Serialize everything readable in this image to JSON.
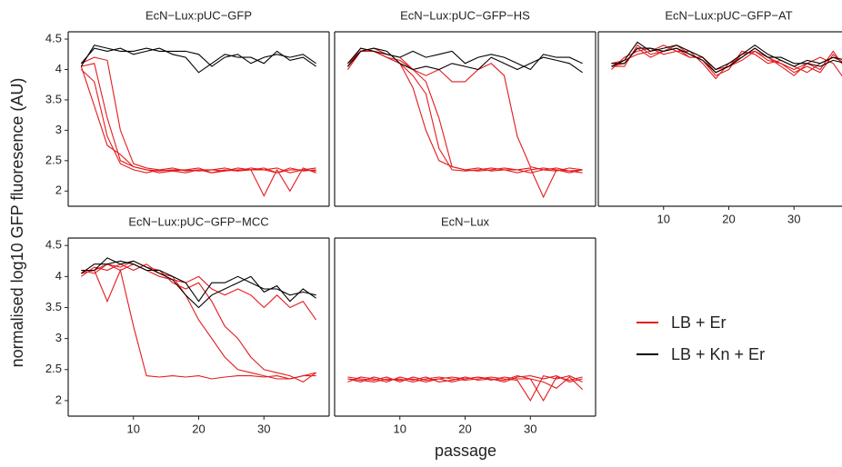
{
  "chart_data": [
    {
      "type": "line",
      "title": "EcN−Lux:pUC−GFP",
      "y_label": "normalised log10 GFP fluoresence (AU)",
      "x": [
        2,
        4,
        6,
        8,
        10,
        12,
        14,
        16,
        18,
        20,
        22,
        24,
        26,
        28,
        30,
        32,
        34,
        36,
        38
      ],
      "xlim": [
        0,
        40
      ],
      "ylim": [
        1.75,
        4.62
      ],
      "yticks": [
        2.0,
        2.5,
        3.0,
        3.5,
        4.0,
        4.5
      ],
      "series": [
        {
          "name": "LB + Er",
          "color": "#e41a1c",
          "values": [
            4.05,
            3.4,
            2.75,
            2.6,
            2.4,
            2.35,
            2.33,
            2.35,
            2.35,
            2.33,
            2.35,
            2.33,
            2.35,
            2.35,
            2.38,
            2.3,
            2.35,
            2.35,
            2.38
          ]
        },
        {
          "name": "LB + Er",
          "color": "#e41a1c",
          "values": [
            4.05,
            4.1,
            3.2,
            2.5,
            2.4,
            2.35,
            2.3,
            2.33,
            2.35,
            2.38,
            2.3,
            2.35,
            2.33,
            2.38,
            2.35,
            2.38,
            2.3,
            2.35,
            2.33
          ]
        },
        {
          "name": "LB + Er",
          "color": "#e41a1c",
          "values": [
            4.1,
            4.2,
            4.15,
            3.0,
            2.45,
            2.38,
            2.35,
            2.33,
            2.3,
            2.35,
            2.35,
            2.38,
            2.33,
            2.35,
            1.92,
            2.35,
            2.0,
            2.38,
            2.3
          ]
        },
        {
          "name": "LB + Er",
          "color": "#e41a1c",
          "values": [
            4.0,
            3.8,
            2.9,
            2.45,
            2.35,
            2.3,
            2.35,
            2.38,
            2.33,
            2.35,
            2.3,
            2.33,
            2.38,
            2.35,
            2.35,
            2.3,
            2.38,
            2.33,
            2.35
          ]
        },
        {
          "name": "LB + Kn + Er",
          "color": "#000000",
          "values": [
            4.05,
            4.4,
            4.35,
            4.3,
            4.3,
            4.35,
            4.3,
            4.3,
            4.3,
            4.25,
            4.05,
            4.2,
            4.25,
            4.1,
            4.2,
            4.25,
            4.2,
            4.25,
            4.1
          ]
        },
        {
          "name": "LB + Kn + Er",
          "color": "#000000",
          "values": [
            4.1,
            4.35,
            4.3,
            4.35,
            4.25,
            4.3,
            4.35,
            4.25,
            4.2,
            3.95,
            4.1,
            4.25,
            4.2,
            4.2,
            4.1,
            4.3,
            4.15,
            4.2,
            4.05
          ]
        }
      ]
    },
    {
      "type": "line",
      "title": "EcN−Lux:pUC−GFP−HS",
      "x": [
        2,
        4,
        6,
        8,
        10,
        12,
        14,
        16,
        18,
        20,
        22,
        24,
        26,
        28,
        30,
        32,
        34,
        36,
        38
      ],
      "xlim": [
        0,
        40
      ],
      "ylim": [
        1.75,
        4.62
      ],
      "series": [
        {
          "name": "LB + Er",
          "color": "#e41a1c",
          "values": [
            4.05,
            4.35,
            4.3,
            4.2,
            4.1,
            3.7,
            3.0,
            2.5,
            2.4,
            2.35,
            2.33,
            2.35,
            2.38,
            2.35,
            2.3,
            2.35,
            2.33,
            2.38,
            2.35
          ]
        },
        {
          "name": "LB + Er",
          "color": "#e41a1c",
          "values": [
            4.1,
            4.3,
            4.35,
            4.25,
            4.2,
            4.0,
            3.8,
            3.2,
            2.4,
            2.35,
            2.38,
            2.33,
            2.35,
            2.35,
            2.38,
            1.9,
            2.35,
            2.3,
            2.35
          ]
        },
        {
          "name": "LB + Er",
          "color": "#e41a1c",
          "values": [
            4.0,
            4.3,
            4.3,
            4.2,
            4.1,
            3.9,
            3.6,
            2.7,
            2.35,
            2.33,
            2.35,
            2.38,
            2.35,
            2.3,
            2.35,
            2.38,
            2.35,
            2.33,
            2.3
          ]
        },
        {
          "name": "LB + Er",
          "color": "#e41a1c",
          "values": [
            4.05,
            4.3,
            4.3,
            4.2,
            4.15,
            4.0,
            3.9,
            4.0,
            3.8,
            3.8,
            4.0,
            4.1,
            3.9,
            2.9,
            2.4,
            2.35,
            2.38,
            2.33,
            2.35
          ]
        },
        {
          "name": "LB + Kn + Er",
          "color": "#000000",
          "values": [
            4.1,
            4.35,
            4.3,
            4.25,
            4.2,
            4.3,
            4.2,
            4.25,
            4.3,
            4.1,
            4.2,
            4.25,
            4.2,
            4.1,
            4.0,
            4.25,
            4.2,
            4.2,
            4.1
          ]
        },
        {
          "name": "LB + Kn + Er",
          "color": "#000000",
          "values": [
            4.05,
            4.3,
            4.35,
            4.3,
            4.1,
            4.0,
            4.05,
            4.0,
            4.1,
            4.05,
            4.0,
            4.2,
            4.1,
            4.0,
            4.1,
            4.2,
            4.15,
            4.1,
            3.95
          ]
        }
      ]
    },
    {
      "type": "line",
      "title": "EcN−Lux:pUC−GFP−AT",
      "x": [
        2,
        4,
        6,
        8,
        10,
        12,
        14,
        16,
        18,
        20,
        22,
        24,
        26,
        28,
        30,
        32,
        34,
        36,
        38
      ],
      "xlim": [
        0,
        40
      ],
      "ylim": [
        1.75,
        4.62
      ],
      "xticks": [
        10,
        20,
        30
      ],
      "series": [
        {
          "name": "LB + Er",
          "color": "#e41a1c",
          "values": [
            4.05,
            4.1,
            4.35,
            4.2,
            4.3,
            4.35,
            4.2,
            4.2,
            3.95,
            4.05,
            4.25,
            4.3,
            4.15,
            4.1,
            4.0,
            4.1,
            4.0,
            4.3,
            4.0
          ]
        },
        {
          "name": "LB + Er",
          "color": "#e41a1c",
          "values": [
            4.0,
            4.2,
            4.3,
            4.35,
            4.25,
            4.3,
            4.3,
            4.1,
            3.85,
            4.1,
            4.2,
            4.35,
            4.2,
            4.05,
            3.9,
            4.1,
            4.2,
            4.1,
            3.8
          ]
        },
        {
          "name": "LB + Er",
          "color": "#e41a1c",
          "values": [
            4.05,
            4.05,
            4.4,
            4.25,
            4.3,
            4.4,
            4.25,
            4.15,
            3.9,
            4.0,
            4.3,
            4.25,
            4.1,
            4.15,
            4.05,
            3.95,
            4.1,
            4.2,
            4.1
          ]
        },
        {
          "name": "LB + Er",
          "color": "#e41a1c",
          "values": [
            4.1,
            4.15,
            4.25,
            4.3,
            4.4,
            4.3,
            4.2,
            4.2,
            4.0,
            4.05,
            4.15,
            4.3,
            4.2,
            4.1,
            3.95,
            4.05,
            3.95,
            4.25,
            4.05
          ]
        },
        {
          "name": "LB + Kn + Er",
          "color": "#000000",
          "values": [
            4.05,
            4.15,
            4.45,
            4.3,
            4.35,
            4.4,
            4.3,
            4.2,
            4.0,
            4.1,
            4.25,
            4.4,
            4.25,
            4.15,
            4.05,
            4.15,
            4.1,
            4.2,
            4.15
          ]
        },
        {
          "name": "LB + Kn + Er",
          "color": "#000000",
          "values": [
            4.1,
            4.1,
            4.35,
            4.35,
            4.3,
            4.35,
            4.25,
            4.15,
            3.95,
            4.05,
            4.2,
            4.35,
            4.2,
            4.2,
            4.1,
            4.1,
            4.05,
            4.15,
            4.1
          ]
        }
      ]
    },
    {
      "type": "line",
      "title": "EcN−Lux:pUC−GFP−MCC",
      "x": [
        2,
        4,
        6,
        8,
        10,
        12,
        14,
        16,
        18,
        20,
        22,
        24,
        26,
        28,
        30,
        32,
        34,
        36,
        38
      ],
      "xlim": [
        0,
        40
      ],
      "ylim": [
        1.75,
        4.62
      ],
      "yticks": [
        2.0,
        2.5,
        3.0,
        3.5,
        4.0,
        4.5
      ],
      "xticks": [
        10,
        20,
        30
      ],
      "series": [
        {
          "name": "LB + Er",
          "color": "#e41a1c",
          "values": [
            4.05,
            4.1,
            3.6,
            4.1,
            3.2,
            2.4,
            2.38,
            2.4,
            2.38,
            2.4,
            2.35,
            2.38,
            2.4,
            2.4,
            2.38,
            2.4,
            2.35,
            2.4,
            2.45
          ]
        },
        {
          "name": "LB + Er",
          "color": "#e41a1c",
          "values": [
            4.0,
            4.15,
            4.1,
            4.2,
            4.1,
            4.2,
            4.05,
            4.0,
            3.7,
            3.3,
            3.0,
            2.7,
            2.5,
            2.45,
            2.4,
            2.35,
            2.35,
            2.4,
            2.4
          ]
        },
        {
          "name": "LB + Er",
          "color": "#e41a1c",
          "values": [
            4.05,
            4.1,
            4.2,
            4.15,
            4.25,
            4.15,
            4.1,
            3.9,
            3.8,
            3.9,
            3.6,
            3.2,
            3.0,
            2.7,
            2.5,
            2.45,
            2.4,
            2.3,
            2.45
          ]
        },
        {
          "name": "LB + Er",
          "color": "#e41a1c",
          "values": [
            4.1,
            4.05,
            4.2,
            4.1,
            4.2,
            4.1,
            4.0,
            3.95,
            3.9,
            4.0,
            3.8,
            3.7,
            3.8,
            3.7,
            3.5,
            3.7,
            3.5,
            3.6,
            3.3
          ]
        },
        {
          "name": "LB + Kn + Er",
          "color": "#000000",
          "values": [
            4.05,
            4.2,
            4.2,
            4.25,
            4.2,
            4.1,
            4.1,
            4.0,
            3.9,
            3.6,
            3.9,
            3.9,
            4.0,
            3.9,
            3.8,
            3.8,
            3.7,
            3.75,
            3.7
          ]
        },
        {
          "name": "LB + Kn + Er",
          "color": "#000000",
          "values": [
            4.1,
            4.1,
            4.3,
            4.2,
            4.25,
            4.15,
            4.05,
            3.95,
            3.7,
            3.5,
            3.7,
            3.8,
            3.9,
            4.0,
            3.75,
            3.85,
            3.6,
            3.8,
            3.65
          ]
        }
      ]
    },
    {
      "type": "line",
      "title": "EcN−Lux",
      "x_label": "passage",
      "x": [
        2,
        4,
        6,
        8,
        10,
        12,
        14,
        16,
        18,
        20,
        22,
        24,
        26,
        28,
        30,
        32,
        34,
        36,
        38
      ],
      "xlim": [
        0,
        40
      ],
      "ylim": [
        1.75,
        4.62
      ],
      "xticks": [
        10,
        20,
        30
      ],
      "series": [
        {
          "name": "LB + Er",
          "color": "#e41a1c",
          "values": [
            2.35,
            2.3,
            2.38,
            2.33,
            2.35,
            2.3,
            2.35,
            2.38,
            2.35,
            2.33,
            2.35,
            2.38,
            2.35,
            2.33,
            2.0,
            2.4,
            2.35,
            2.4,
            2.3
          ]
        },
        {
          "name": "LB + Er",
          "color": "#e41a1c",
          "values": [
            2.38,
            2.35,
            2.33,
            2.38,
            2.3,
            2.38,
            2.33,
            2.35,
            2.38,
            2.35,
            2.38,
            2.33,
            2.38,
            2.35,
            2.35,
            2.0,
            2.38,
            2.33,
            2.38
          ]
        },
        {
          "name": "LB + Er",
          "color": "#e41a1c",
          "values": [
            2.3,
            2.38,
            2.35,
            2.3,
            2.38,
            2.33,
            2.38,
            2.3,
            2.33,
            2.38,
            2.33,
            2.35,
            2.33,
            2.4,
            2.35,
            2.3,
            2.2,
            2.38,
            2.18
          ]
        },
        {
          "name": "LB + Er",
          "color": "#e41a1c",
          "values": [
            2.35,
            2.33,
            2.3,
            2.35,
            2.33,
            2.35,
            2.3,
            2.35,
            2.3,
            2.35,
            2.38,
            2.35,
            2.3,
            2.38,
            2.4,
            2.35,
            2.4,
            2.3,
            2.35
          ]
        }
      ]
    }
  ]
}
